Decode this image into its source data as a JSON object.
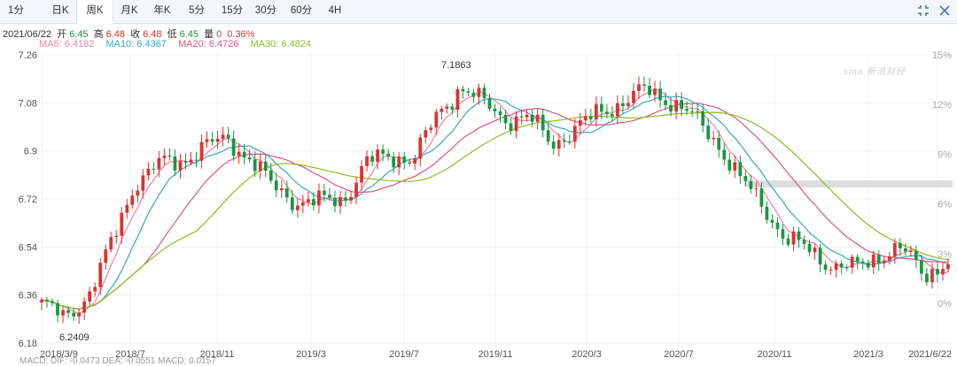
{
  "tabs": [
    {
      "label": "1分",
      "active": false
    },
    {
      "label": "日K",
      "active": false
    },
    {
      "label": "周K",
      "active": true
    },
    {
      "label": "月K",
      "active": false
    },
    {
      "label": "年K",
      "active": false
    },
    {
      "label": "5分",
      "active": false
    },
    {
      "label": "15分",
      "active": false
    },
    {
      "label": "30分",
      "active": false
    },
    {
      "label": "60分",
      "active": false
    },
    {
      "label": "4H",
      "active": false
    }
  ],
  "quote": {
    "date": "2021/06/22",
    "open_label": "开",
    "open": "6.45",
    "high_label": "高",
    "high": "6.48",
    "close_label": "收",
    "close": "6.48",
    "low_label": "低",
    "low": "6.45",
    "volume_label": "量",
    "volume": "0",
    "change": "0.36%"
  },
  "ma_legend": {
    "ma5": "MA5: 6.4182",
    "ma10": "MA10: 6.4367",
    "ma20": "MA20: 6.4726",
    "ma30": "MA30: 6.4824"
  },
  "watermark": "sina 新浪财经",
  "bottom_text": "MACD: DIF: -0.0473    DEA: -0.0551    MACD: 0.0157",
  "colors": {
    "up": "#e03131",
    "down": "#1a9641",
    "ma5": "#ee84aa",
    "ma10": "#39a7c7",
    "ma20": "#e05587",
    "ma30": "#8cbd1f"
  },
  "chart_data": {
    "type": "candlestick",
    "title": "",
    "y_ticks": [
      "7.26",
      "7.08",
      "6.9",
      "6.72",
      "6.54",
      "6.36",
      "6.18"
    ],
    "y2_ticks": [
      "15%",
      "12%",
      "9%",
      "6%",
      "3%",
      "0%"
    ],
    "x_ticks": [
      "2018/3/9",
      "2018/7",
      "2018/11",
      "2019/3",
      "2019/7",
      "2019/11",
      "2020/3",
      "2020/7",
      "2020/11",
      "2021/3",
      "2021/6/22"
    ],
    "ylim": [
      6.18,
      7.26
    ],
    "annotations": [
      {
        "label": "7.1863",
        "kind": "high",
        "value": 7.1863
      },
      {
        "label": "6.2409",
        "kind": "low",
        "value": 6.2409
      }
    ],
    "close_anchors": [
      {
        "date": "2018/3/9",
        "value": 6.33
      },
      {
        "date": "2018/4",
        "value": 6.27
      },
      {
        "date": "2018/5",
        "value": 6.36
      },
      {
        "date": "2018/6",
        "value": 6.55
      },
      {
        "date": "2018/7",
        "value": 6.78
      },
      {
        "date": "2018/8",
        "value": 6.85
      },
      {
        "date": "2018/9",
        "value": 6.86
      },
      {
        "date": "2018/10",
        "value": 6.92
      },
      {
        "date": "2018/11",
        "value": 6.94
      },
      {
        "date": "2018/12",
        "value": 6.87
      },
      {
        "date": "2019/1",
        "value": 6.76
      },
      {
        "date": "2019/2",
        "value": 6.71
      },
      {
        "date": "2019/3",
        "value": 6.71
      },
      {
        "date": "2019/4",
        "value": 6.72
      },
      {
        "date": "2019/5",
        "value": 6.86
      },
      {
        "date": "2019/6",
        "value": 6.88
      },
      {
        "date": "2019/7",
        "value": 6.87
      },
      {
        "date": "2019/8",
        "value": 7.03
      },
      {
        "date": "2019/9",
        "value": 7.14
      },
      {
        "date": "2019/10",
        "value": 7.08
      },
      {
        "date": "2019/11",
        "value": 7.02
      },
      {
        "date": "2019/12",
        "value": 7.02
      },
      {
        "date": "2020/1",
        "value": 6.93
      },
      {
        "date": "2020/2",
        "value": 6.98
      },
      {
        "date": "2020/3",
        "value": 7.05
      },
      {
        "date": "2020/4",
        "value": 7.08
      },
      {
        "date": "2020/5",
        "value": 7.13
      },
      {
        "date": "2020/6",
        "value": 7.09
      },
      {
        "date": "2020/7",
        "value": 7.03
      },
      {
        "date": "2020/8",
        "value": 6.94
      },
      {
        "date": "2020/9",
        "value": 6.8
      },
      {
        "date": "2020/10",
        "value": 6.7
      },
      {
        "date": "2020/11",
        "value": 6.57
      },
      {
        "date": "2020/12",
        "value": 6.53
      },
      {
        "date": "2021/1",
        "value": 6.47
      },
      {
        "date": "2021/2",
        "value": 6.46
      },
      {
        "date": "2021/3",
        "value": 6.51
      },
      {
        "date": "2021/4",
        "value": 6.53
      },
      {
        "date": "2021/5",
        "value": 6.44
      },
      {
        "date": "2021/6/22",
        "value": 6.48
      }
    ]
  }
}
